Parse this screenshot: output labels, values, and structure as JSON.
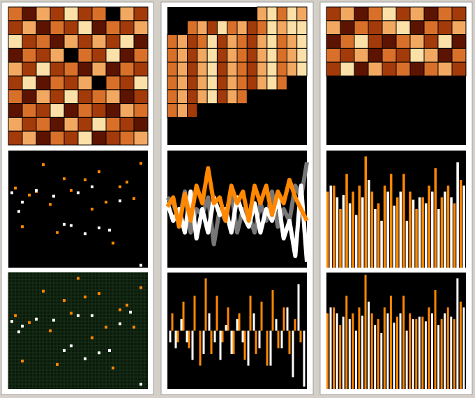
{
  "chart_data": [
    {
      "type": "heatmap",
      "colors": [
        "#000000",
        "#5c1400",
        "#a33a0a",
        "#d9702a",
        "#f2a860",
        "#fbe0a8"
      ],
      "values": [
        [
          3,
          1,
          4,
          2,
          5,
          2,
          3,
          0,
          4,
          2
        ],
        [
          2,
          4,
          1,
          3,
          2,
          5,
          1,
          3,
          2,
          4
        ],
        [
          5,
          2,
          3,
          1,
          4,
          2,
          4,
          2,
          5,
          1
        ],
        [
          1,
          3,
          2,
          4,
          0,
          3,
          2,
          5,
          1,
          3
        ],
        [
          4,
          2,
          5,
          2,
          3,
          1,
          4,
          1,
          3,
          2
        ],
        [
          2,
          5,
          1,
          3,
          2,
          4,
          0,
          3,
          2,
          5
        ],
        [
          3,
          1,
          4,
          2,
          5,
          2,
          3,
          4,
          1,
          2
        ],
        [
          1,
          3,
          2,
          5,
          1,
          3,
          2,
          1,
          4,
          3
        ],
        [
          4,
          2,
          3,
          1,
          4,
          2,
          5,
          3,
          2,
          1
        ],
        [
          2,
          4,
          1,
          3,
          2,
          5,
          1,
          2,
          3,
          4
        ]
      ]
    },
    {
      "type": "heatmap",
      "colors": [
        "#000000",
        "#5c1400",
        "#a33a0a",
        "#d9702a",
        "#f2a860",
        "#fbe0a8"
      ],
      "values": [
        [
          null,
          null,
          null,
          null,
          null,
          null,
          null,
          null,
          null,
          4,
          5,
          3,
          5,
          4
        ],
        [
          null,
          null,
          3,
          4,
          2,
          5,
          3,
          4,
          2,
          3,
          5,
          4,
          5,
          5
        ],
        [
          3,
          4,
          2,
          3,
          5,
          2,
          4,
          3,
          2,
          4,
          5,
          3,
          4,
          5
        ],
        [
          3,
          4,
          2,
          4,
          5,
          2,
          4,
          3,
          2,
          4,
          5,
          3,
          4,
          5
        ],
        [
          3,
          4,
          2,
          4,
          5,
          2,
          4,
          3,
          2,
          4,
          5,
          3,
          4,
          5
        ],
        [
          3,
          4,
          2,
          4,
          5,
          2,
          4,
          3,
          2,
          4,
          5,
          3,
          null,
          null
        ],
        [
          3,
          4,
          2,
          4,
          5,
          2,
          4,
          3,
          null,
          null,
          null,
          null,
          null,
          null
        ],
        [
          3,
          4,
          2,
          null,
          null,
          null,
          null,
          null,
          null,
          null,
          null,
          null,
          null,
          null
        ],
        [
          null,
          null,
          null,
          null,
          null,
          null,
          null,
          null,
          null,
          null,
          null,
          null,
          null,
          null
        ],
        [
          null,
          null,
          null,
          null,
          null,
          null,
          null,
          null,
          null,
          null,
          null,
          null,
          null,
          null
        ]
      ]
    },
    {
      "type": "heatmap",
      "colors": [
        "#000000",
        "#5c1400",
        "#a33a0a",
        "#d9702a",
        "#f2a860",
        "#fbe0a8"
      ],
      "values": [
        [
          2,
          4,
          1,
          3,
          5,
          2,
          4,
          1,
          3,
          2
        ],
        [
          4,
          1,
          3,
          2,
          4,
          5,
          1,
          3,
          2,
          4
        ],
        [
          1,
          3,
          5,
          2,
          1,
          3,
          4,
          2,
          5,
          1
        ],
        [
          3,
          2,
          4,
          1,
          3,
          2,
          5,
          4,
          1,
          3
        ],
        [
          2,
          5,
          1,
          4,
          2,
          3,
          1,
          3,
          4,
          2
        ],
        [
          null,
          null,
          null,
          null,
          null,
          null,
          null,
          null,
          null,
          null
        ],
        [
          null,
          null,
          null,
          null,
          null,
          null,
          null,
          null,
          null,
          null
        ],
        [
          null,
          null,
          null,
          null,
          null,
          null,
          null,
          null,
          null,
          null
        ],
        [
          null,
          null,
          null,
          null,
          null,
          null,
          null,
          null,
          null,
          null
        ],
        [
          null,
          null,
          null,
          null,
          null,
          null,
          null,
          null,
          null,
          null
        ]
      ]
    },
    {
      "type": "scatter",
      "background": "#000000",
      "xlim": [
        0,
        20
      ],
      "ylim": [
        0,
        10
      ],
      "series": [
        {
          "color": "#ff8800",
          "x": [
            1,
            3,
            5,
            6,
            8,
            9,
            11,
            13,
            14,
            16,
            17,
            19,
            2,
            7,
            12,
            15,
            18,
            4
          ],
          "y": [
            6.8,
            6.2,
            8.8,
            5.4,
            7.6,
            6.6,
            7.5,
            8.2,
            5.6,
            6.9,
            7.3,
            8.9,
            3.5,
            3,
            5,
            2.1,
            5.9,
            6.5
          ]
        },
        {
          "color": "#ffffff",
          "x": [
            0.5,
            2,
            4,
            6.5,
            9,
            10,
            12,
            14.5,
            16,
            19,
            11,
            8,
            13,
            1.5
          ],
          "y": [
            6.4,
            5.6,
            6.6,
            6.1,
            3.6,
            6.4,
            6.9,
            3.2,
            5.7,
            0.2,
            2.9,
            3.7,
            3.4,
            4.8
          ]
        }
      ]
    },
    {
      "type": "line",
      "background": "#000000",
      "ylim": [
        0,
        10
      ],
      "series": [
        {
          "color": "#777777",
          "values": [
            6,
            5.5,
            4,
            6.5,
            3,
            5,
            4.5,
            6,
            2,
            5,
            4,
            6.5,
            3,
            5,
            4.5,
            3,
            5.5,
            4,
            6.5,
            3.5,
            5,
            4,
            7,
            6,
            9
          ]
        },
        {
          "color": "#ffffff",
          "values": [
            5.5,
            4,
            5,
            3,
            6.5,
            2.5,
            5,
            3,
            6,
            4.5,
            5,
            3,
            6,
            4.5,
            3.5,
            5.5,
            3,
            5,
            4,
            6,
            2.5,
            4,
            1,
            7,
            0.5
          ]
        },
        {
          "color": "#ff8800",
          "values": [
            5.2,
            6,
            3.5,
            6.3,
            4,
            7,
            5.5,
            8.5,
            5.5,
            6,
            4,
            7,
            5.5,
            6.5,
            4,
            7,
            5.5,
            7,
            4.5,
            6.5,
            5.5,
            7.5,
            6,
            5,
            4
          ]
        }
      ]
    },
    {
      "type": "bar",
      "background": "#000000",
      "ylim": [
        0,
        10
      ],
      "series": [
        {
          "color": "#ff8800",
          "values": [
            6.5,
            7,
            5,
            8,
            6.5,
            7,
            9.5,
            6.5,
            5.5,
            7,
            8,
            6,
            8,
            6.5,
            5,
            6,
            7,
            8.5,
            6,
            7,
            5.5,
            7.5
          ]
        },
        {
          "color": "#ffffff",
          "values": [
            7,
            6,
            6.2,
            5.5,
            4.5,
            6,
            7.5,
            5,
            4,
            6.5,
            5.3,
            6.5,
            4,
            5.8,
            6,
            5.5,
            6.5,
            5,
            6.5,
            6,
            9,
            7
          ]
        }
      ]
    },
    {
      "type": "scatter",
      "background": "#0a1a0a",
      "grid": true,
      "xlim": [
        0,
        20
      ],
      "ylim": [
        0,
        10
      ],
      "series": [
        {
          "color": "#ff8800",
          "x": [
            1,
            3,
            5,
            6,
            8,
            9,
            11,
            13,
            14,
            16,
            17,
            19,
            2,
            7,
            12,
            15,
            18,
            4,
            10
          ],
          "y": [
            6.3,
            5.7,
            8.4,
            5,
            7.6,
            6.5,
            7.9,
            8.2,
            5.3,
            6.8,
            7.2,
            8.7,
            2.4,
            2.1,
            4.4,
            1.8,
            5.3,
            6,
            9.5
          ]
        },
        {
          "color": "#ffffff",
          "x": [
            0.5,
            2,
            4,
            6.5,
            9,
            10,
            12,
            14.5,
            16,
            19,
            11,
            8,
            13,
            1.5,
            17.5
          ],
          "y": [
            5.8,
            5.4,
            6,
            5.9,
            3.7,
            6.3,
            6.3,
            3.3,
            5.6,
            0.4,
            2.6,
            3.3,
            3.1,
            4.9,
            6.6
          ]
        }
      ]
    },
    {
      "type": "spike",
      "background": "#000000",
      "ylim": [
        0,
        10
      ],
      "series": [
        {
          "color": "#ffffff",
          "values": [
            4,
            3.5,
            6,
            4,
            2.5,
            5,
            3,
            6.5,
            4,
            2.5,
            5.5,
            3,
            6,
            4,
            2,
            6.5,
            3.5,
            5,
            2,
            6,
            3.5,
            7,
            1,
            9,
            0.2
          ]
        },
        {
          "color": "#ff8800",
          "values": [
            6.5,
            4,
            7.5,
            3.5,
            8,
            2,
            9.5,
            3,
            8,
            4,
            7,
            3,
            6.5,
            2.5,
            8,
            3,
            7.5,
            2,
            8.5,
            3.5,
            7,
            3,
            6,
            4,
            5
          ]
        }
      ]
    },
    {
      "type": "bar",
      "thin": true,
      "background": "#000000",
      "ylim": [
        0,
        10
      ],
      "series": [
        {
          "color": "#ff8800",
          "values": [
            6.5,
            7,
            5.5,
            8,
            6.5,
            7,
            9.8,
            6.5,
            6,
            7,
            8,
            6.2,
            8,
            6.5,
            6,
            6.2,
            7,
            8.5,
            6,
            7,
            6,
            7.5
          ]
        },
        {
          "color": "#ffffff",
          "values": [
            7,
            6.5,
            6.2,
            6,
            5,
            6.3,
            7.5,
            5.5,
            4.8,
            6.5,
            5.7,
            6.5,
            5,
            6,
            6.2,
            5.8,
            6.5,
            5.5,
            6.5,
            6.2,
            9.5,
            7
          ]
        }
      ]
    }
  ]
}
